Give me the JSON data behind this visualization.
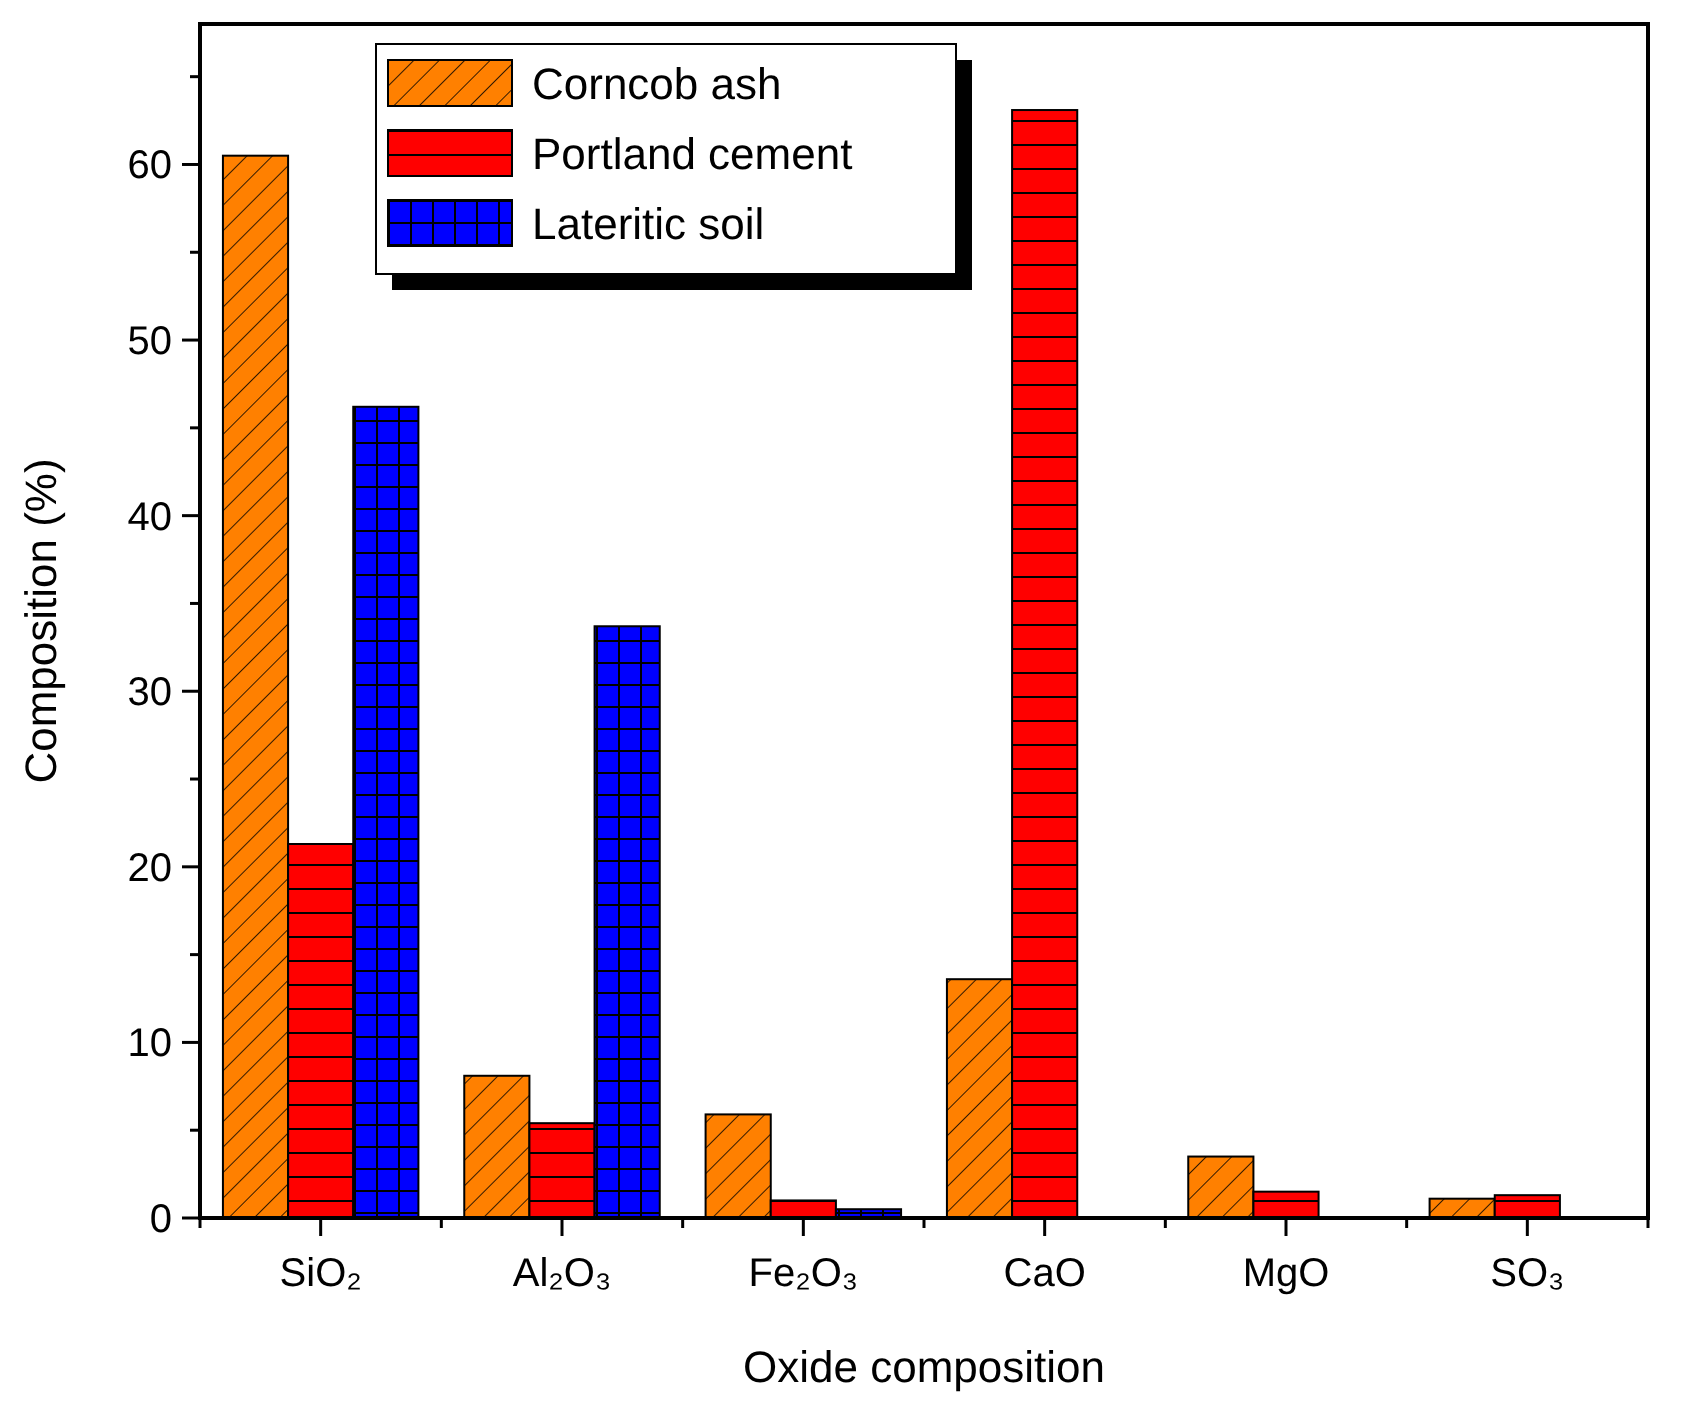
{
  "chart_data": {
    "type": "bar",
    "xlabel": "Oxide composition",
    "ylabel": "Composition (%)",
    "categories": [
      "SiO₂",
      "Al₂O₃",
      "Fe₂O₃",
      "CaO",
      "MgO",
      "SO₃"
    ],
    "series": [
      {
        "name": "Corncob ash",
        "color": "#ff8000",
        "values": [
          60.5,
          8.1,
          5.9,
          13.6,
          3.5,
          1.1
        ]
      },
      {
        "name": "Portland cement",
        "color": "#ff0000",
        "values": [
          21.3,
          5.4,
          1.0,
          63.1,
          1.5,
          1.3
        ]
      },
      {
        "name": "Lateritic soil",
        "color": "#0000ff",
        "values": [
          46.2,
          33.7,
          0.5,
          null,
          null,
          null
        ]
      }
    ],
    "ylim": [
      0,
      68
    ],
    "yticks": [
      0,
      {
        "value": 5,
        "label": null
      },
      10,
      {
        "value": 15,
        "label": null
      },
      20,
      {
        "value": 25,
        "label": null
      },
      30,
      {
        "value": 35,
        "label": null
      },
      40,
      {
        "value": 45,
        "label": null
      },
      50,
      {
        "value": 55,
        "label": null
      },
      60,
      {
        "value": 65,
        "label": null
      }
    ],
    "legend": "top",
    "grid": false
  }
}
